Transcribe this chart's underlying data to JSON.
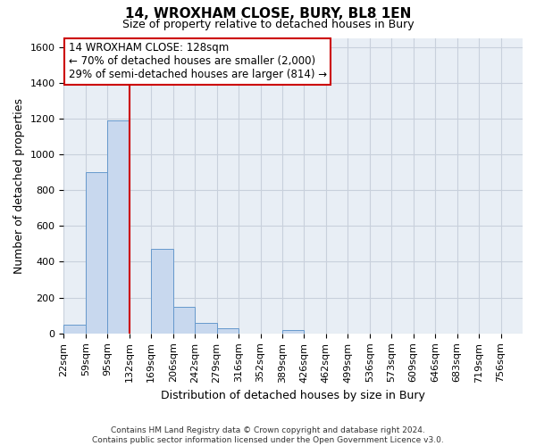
{
  "title": "14, WROXHAM CLOSE, BURY, BL8 1EN",
  "subtitle": "Size of property relative to detached houses in Bury",
  "xlabel": "Distribution of detached houses by size in Bury",
  "ylabel": "Number of detached properties",
  "bar_color": "#c8d8ee",
  "bar_edge_color": "#6699cc",
  "grid_color": "#c8d0dc",
  "background_color": "#e8eef5",
  "categories": [
    "22sqm",
    "59sqm",
    "95sqm",
    "132sqm",
    "169sqm",
    "206sqm",
    "242sqm",
    "279sqm",
    "316sqm",
    "352sqm",
    "389sqm",
    "426sqm",
    "462sqm",
    "499sqm",
    "536sqm",
    "573sqm",
    "609sqm",
    "646sqm",
    "683sqm",
    "719sqm",
    "756sqm"
  ],
  "values": [
    50,
    900,
    1190,
    0,
    470,
    150,
    60,
    30,
    0,
    0,
    20,
    0,
    0,
    0,
    0,
    0,
    0,
    0,
    0,
    0,
    0
  ],
  "ylim": [
    0,
    1650
  ],
  "yticks": [
    0,
    200,
    400,
    600,
    800,
    1000,
    1200,
    1400,
    1600
  ],
  "annotation_line1": "14 WROXHAM CLOSE: 128sqm",
  "annotation_line2": "← 70% of detached houses are smaller (2,000)",
  "annotation_line3": "29% of semi-detached houses are larger (814) →",
  "annotation_box_color": "#ffffff",
  "annotation_box_edge": "#cc0000",
  "vline_color": "#cc0000",
  "vline_x_index": 3,
  "footer_line1": "Contains HM Land Registry data © Crown copyright and database right 2024.",
  "footer_line2": "Contains public sector information licensed under the Open Government Licence v3.0.",
  "title_fontsize": 11,
  "subtitle_fontsize": 9,
  "axis_label_fontsize": 9,
  "tick_fontsize": 8
}
